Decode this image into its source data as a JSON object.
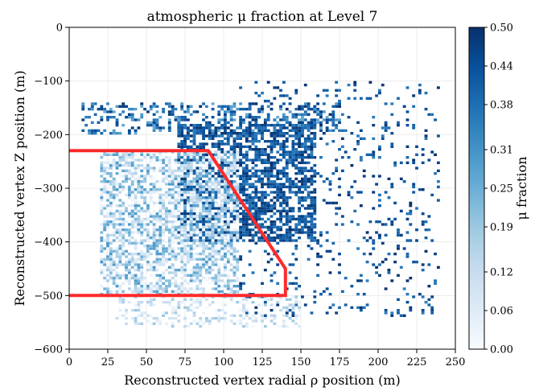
{
  "chart_data": {
    "type": "heatmap",
    "title": "atmospheric μ fraction at Level 7",
    "xlabel": "Reconstructed vertex radial ρ position (m)",
    "ylabel": "Reconstructed vertex Z position (m)",
    "xlim": [
      0,
      250
    ],
    "ylim": [
      -600,
      0
    ],
    "x_ticks": [
      "0",
      "25",
      "50",
      "75",
      "100",
      "125",
      "150",
      "175",
      "200",
      "225",
      "250"
    ],
    "y_ticks": [
      "0",
      "−100",
      "−200",
      "−300",
      "−400",
      "−500",
      "−600"
    ],
    "grid": true,
    "colorbar": {
      "label": "μ fraction",
      "range": [
        0.0,
        0.5
      ],
      "ticks": [
        "0.00",
        "0.06",
        "0.12",
        "0.19",
        "0.25",
        "0.31",
        "0.38",
        "0.44",
        "0.50"
      ],
      "colormap": "Blues",
      "color_min": "#f7fbff",
      "color_max": "#08306b"
    },
    "cut_region": {
      "color": "#ff2a2a",
      "boundary": [
        [
          0,
          -230
        ],
        [
          90,
          -230
        ],
        [
          140,
          -450
        ],
        [
          140,
          -500
        ],
        [
          0,
          -500
        ]
      ]
    },
    "density_regions": [
      {
        "rho": [
          8,
          175
        ],
        "z": [
          -140,
          -200
        ],
        "fraction_range": [
          0.25,
          0.5
        ],
        "density": "moderate"
      },
      {
        "rho": [
          70,
          160
        ],
        "z": [
          -180,
          -400
        ],
        "fraction_range": [
          0.35,
          0.5
        ],
        "density": "high"
      },
      {
        "rho": [
          20,
          110
        ],
        "z": [
          -230,
          -500
        ],
        "fraction_range": [
          0.0,
          0.3
        ],
        "density": "high"
      },
      {
        "rho": [
          110,
          240
        ],
        "z": [
          -100,
          -540
        ],
        "fraction_range": [
          0.35,
          0.5
        ],
        "density": "sparse"
      },
      {
        "rho": [
          30,
          150
        ],
        "z": [
          -500,
          -560
        ],
        "fraction_range": [
          0.0,
          0.2
        ],
        "density": "moderate"
      }
    ]
  }
}
